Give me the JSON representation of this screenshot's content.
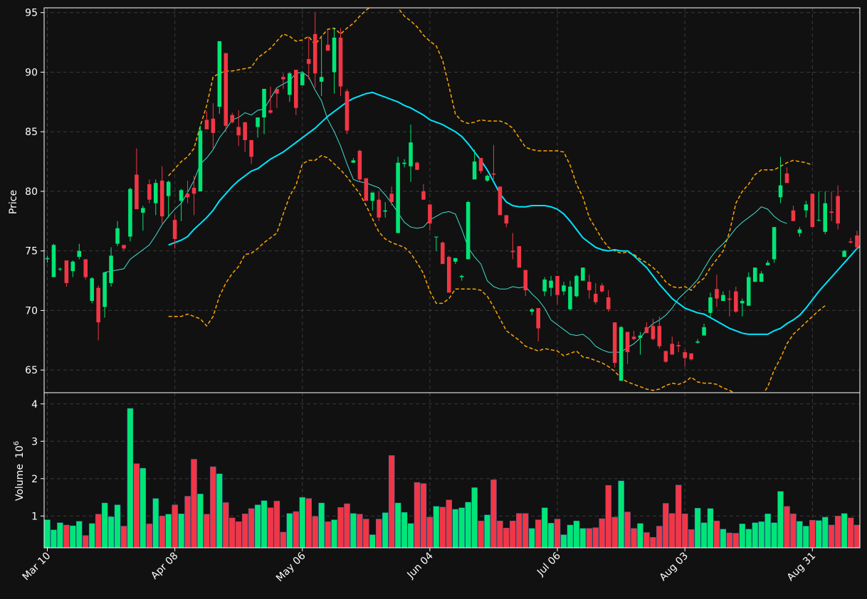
{
  "colors": {
    "background": "#111111",
    "up": "#00e676",
    "down": "#f23645",
    "ma_fast": "#40e0d0",
    "ma_slow": "#00e5ff",
    "bands": "#ffa500",
    "grid": "#3a3a3a",
    "axis": "#ffffff"
  },
  "chart_data": {
    "type": "candlestick",
    "title": "",
    "ylabel_price": "Price",
    "ylabel_volume": "Volume",
    "volume_multiplier_label": "10",
    "volume_multiplier_exp": "6",
    "price_yticks": [
      65,
      70,
      75,
      80,
      85,
      90,
      95
    ],
    "volume_yticks": [
      1,
      2,
      3,
      4
    ],
    "price_ylim": [
      63.1,
      95.4
    ],
    "volume_ylim": [
      0.15,
      4.3
    ],
    "x_ticks": [
      {
        "index": 0,
        "label": "Mar 10"
      },
      {
        "index": 20,
        "label": "Apr 08"
      },
      {
        "index": 40,
        "label": "May 06"
      },
      {
        "index": 60,
        "label": "Jun 04"
      },
      {
        "index": 80,
        "label": "Jul 06"
      },
      {
        "index": 100,
        "label": "Aug 03"
      },
      {
        "index": 120,
        "label": "Aug 31"
      }
    ],
    "grid": true,
    "candles_ohlcv": [
      [
        74.3,
        74.6,
        74.0,
        74.4,
        0.9
      ],
      [
        72.8,
        75.6,
        72.8,
        75.5,
        0.63
      ],
      [
        73.5,
        73.6,
        73.3,
        73.5,
        0.82
      ],
      [
        74.2,
        74.2,
        72.0,
        72.3,
        0.76
      ],
      [
        73.3,
        74.2,
        72.8,
        74.1,
        0.74
      ],
      [
        74.5,
        75.6,
        74.3,
        75.0,
        0.86
      ],
      [
        74.3,
        74.3,
        72.6,
        72.8,
        0.48
      ],
      [
        70.8,
        72.8,
        70.6,
        72.7,
        0.8
      ],
      [
        71.9,
        72.1,
        67.5,
        69.0,
        1.05
      ],
      [
        70.3,
        73.2,
        69.4,
        73.2,
        1.35
      ],
      [
        72.3,
        75.3,
        72.0,
        74.6,
        0.98
      ],
      [
        75.6,
        77.5,
        75.4,
        76.9,
        1.3
      ],
      [
        75.5,
        75.5,
        75.0,
        75.2,
        0.73
      ],
      [
        76.2,
        80.3,
        75.8,
        80.2,
        3.88
      ],
      [
        81.4,
        83.6,
        78.6,
        78.5,
        2.4
      ],
      [
        78.2,
        78.8,
        76.7,
        78.6,
        2.28
      ],
      [
        80.6,
        81.0,
        79.0,
        79.3,
        0.79
      ],
      [
        79.0,
        81.0,
        78.0,
        80.7,
        1.47
      ],
      [
        80.9,
        82.1,
        77.3,
        77.9,
        1.0
      ],
      [
        79.6,
        80.9,
        77.8,
        80.8,
        1.05
      ],
      [
        77.6,
        78.0,
        75.2,
        76.0,
        1.3
      ],
      [
        79.2,
        80.2,
        77.5,
        80.1,
        1.06
      ],
      [
        79.8,
        80.9,
        79.0,
        79.5,
        1.53
      ],
      [
        80.3,
        81.3,
        78.0,
        79.8,
        2.52
      ],
      [
        80.0,
        85.5,
        80.0,
        85.1,
        1.59
      ],
      [
        86.0,
        86.7,
        85.4,
        85.2,
        1.05
      ],
      [
        86.1,
        87.4,
        83.5,
        84.9,
        2.32
      ],
      [
        87.1,
        92.6,
        86.5,
        92.6,
        2.13
      ],
      [
        91.6,
        91.6,
        85.0,
        85.5,
        1.36
      ],
      [
        86.4,
        86.6,
        85.7,
        85.8,
        0.95
      ],
      [
        85.4,
        86.8,
        83.8,
        84.7,
        0.85
      ],
      [
        85.8,
        85.8,
        83.3,
        84.3,
        1.06
      ],
      [
        84.3,
        84.3,
        82.3,
        82.9,
        1.2
      ],
      [
        85.4,
        86.2,
        84.5,
        86.2,
        1.3
      ],
      [
        86.2,
        88.6,
        84.8,
        88.6,
        1.41
      ],
      [
        86.8,
        88.8,
        86.5,
        86.6,
        1.22
      ],
      [
        88.6,
        88.6,
        87.0,
        88.2,
        1.4
      ],
      [
        89.6,
        89.9,
        88.6,
        89.4,
        0.57
      ],
      [
        88.1,
        90.0,
        87.5,
        89.9,
        1.07
      ],
      [
        90.2,
        90.2,
        86.4,
        87.0,
        1.12
      ],
      [
        88.9,
        90.1,
        88.9,
        89.9,
        1.5
      ],
      [
        91.1,
        93.0,
        89.4,
        90.7,
        1.47
      ],
      [
        93.2,
        95.0,
        88.7,
        89.9,
        0.99
      ],
      [
        89.2,
        92.9,
        88.0,
        89.6,
        1.35
      ],
      [
        92.3,
        93.5,
        91.8,
        91.8,
        0.85
      ],
      [
        90.0,
        93.7,
        88.2,
        92.9,
        0.9
      ],
      [
        92.9,
        93.7,
        88.0,
        88.8,
        1.23
      ],
      [
        88.4,
        88.6,
        84.8,
        85.1,
        1.33
      ],
      [
        82.4,
        82.8,
        82.4,
        82.6,
        1.07
      ],
      [
        83.4,
        83.5,
        80.8,
        81.0,
        1.05
      ],
      [
        81.1,
        81.1,
        79.7,
        79.2,
        0.92
      ],
      [
        79.2,
        79.9,
        78.4,
        79.9,
        0.5
      ],
      [
        79.3,
        80.0,
        77.5,
        77.8,
        0.92
      ],
      [
        78.3,
        79.1,
        77.8,
        78.4,
        1.09
      ],
      [
        79.8,
        80.4,
        78.8,
        79.1,
        2.62
      ],
      [
        76.5,
        82.9,
        76.5,
        82.4,
        1.35
      ],
      [
        82.3,
        82.7,
        82.0,
        82.4,
        1.1
      ],
      [
        82.1,
        85.6,
        80.8,
        84.1,
        0.8
      ],
      [
        82.4,
        82.5,
        81.8,
        81.8,
        1.9
      ],
      [
        80.0,
        80.6,
        79.3,
        79.3,
        1.87
      ],
      [
        78.9,
        78.9,
        76.7,
        77.3,
        0.97
      ],
      [
        76.2,
        76.2,
        75.0,
        76.2,
        1.26
      ],
      [
        75.7,
        75.8,
        73.9,
        73.9,
        1.24
      ],
      [
        74.5,
        74.6,
        71.5,
        71.5,
        1.43
      ],
      [
        74.1,
        74.4,
        73.9,
        74.4,
        1.18
      ],
      [
        72.8,
        73.0,
        72.5,
        72.9,
        1.22
      ],
      [
        74.3,
        79.2,
        74.3,
        79.1,
        1.37
      ],
      [
        81.0,
        83.5,
        81.0,
        82.5,
        1.76
      ],
      [
        82.8,
        82.8,
        81.5,
        81.7,
        0.87
      ],
      [
        80.9,
        81.4,
        80.8,
        81.3,
        1.03
      ],
      [
        81.5,
        83.9,
        81.0,
        81.4,
        1.97
      ],
      [
        80.4,
        80.4,
        78.0,
        78.0,
        0.87
      ],
      [
        78.0,
        78.0,
        77.0,
        77.3,
        0.68
      ],
      [
        75.0,
        76.5,
        74.3,
        74.9,
        0.87
      ],
      [
        75.4,
        75.4,
        73.6,
        73.6,
        1.07
      ],
      [
        73.4,
        73.4,
        71.2,
        71.7,
        1.07
      ],
      [
        69.9,
        70.2,
        69.6,
        70.1,
        0.67
      ],
      [
        70.2,
        70.2,
        67.4,
        68.5,
        0.9
      ],
      [
        71.6,
        72.8,
        71.2,
        72.6,
        1.22
      ],
      [
        71.9,
        72.9,
        71.2,
        72.5,
        0.81
      ],
      [
        72.9,
        72.9,
        70.5,
        71.3,
        0.92
      ],
      [
        71.6,
        72.4,
        71.3,
        72.1,
        0.5
      ],
      [
        70.1,
        72.5,
        70.0,
        72.0,
        0.76
      ],
      [
        71.2,
        73.0,
        71.1,
        72.9,
        0.87
      ],
      [
        72.5,
        73.3,
        72.5,
        73.6,
        0.67
      ],
      [
        72.4,
        73.0,
        71.0,
        71.7,
        0.67
      ],
      [
        71.4,
        72.3,
        70.5,
        70.7,
        0.69
      ],
      [
        72.1,
        72.3,
        71.5,
        71.6,
        0.93
      ],
      [
        71.1,
        71.7,
        69.9,
        70.1,
        1.82
      ],
      [
        69.0,
        69.0,
        65.2,
        65.6,
        0.97
      ],
      [
        64.1,
        68.7,
        64.1,
        68.6,
        1.94
      ],
      [
        68.2,
        68.2,
        65.5,
        66.5,
        1.11
      ],
      [
        67.8,
        68.3,
        67.5,
        67.6,
        0.67
      ],
      [
        67.7,
        68.2,
        66.3,
        67.9,
        0.8
      ],
      [
        68.6,
        69.0,
        68.2,
        68.1,
        0.56
      ],
      [
        68.7,
        69.3,
        67.5,
        67.6,
        0.43
      ],
      [
        68.7,
        69.5,
        66.8,
        67.0,
        0.73
      ],
      [
        66.6,
        66.6,
        65.6,
        65.7,
        1.34
      ],
      [
        67.2,
        67.8,
        66.6,
        66.3,
        1.07
      ],
      [
        67.1,
        67.4,
        66.5,
        67.0,
        1.83
      ],
      [
        66.5,
        66.7,
        65.3,
        66.0,
        1.06
      ],
      [
        66.4,
        66.4,
        65.8,
        65.9,
        0.64
      ],
      [
        67.3,
        67.6,
        67.2,
        67.4,
        1.21
      ],
      [
        67.9,
        68.9,
        67.9,
        68.6,
        0.82
      ],
      [
        69.8,
        71.5,
        69.4,
        71.1,
        1.2
      ],
      [
        71.8,
        73.0,
        70.3,
        71.0,
        0.87
      ],
      [
        70.8,
        71.6,
        70.8,
        71.3,
        0.65
      ],
      [
        71.0,
        71.7,
        69.5,
        70.9,
        0.55
      ],
      [
        71.6,
        72.0,
        69.8,
        69.9,
        0.54
      ],
      [
        70.6,
        71.0,
        69.5,
        70.8,
        0.79
      ],
      [
        70.4,
        73.2,
        70.4,
        72.8,
        0.65
      ],
      [
        72.4,
        73.6,
        72.4,
        73.6,
        0.82
      ],
      [
        72.4,
        73.3,
        72.4,
        73.1,
        0.85
      ],
      [
        73.8,
        74.2,
        73.8,
        74.0,
        1.06
      ],
      [
        74.3,
        77.0,
        74.0,
        77.0,
        0.82
      ],
      [
        79.5,
        82.9,
        79.0,
        80.5,
        1.66
      ],
      [
        81.5,
        82.0,
        80.7,
        80.7,
        1.26
      ],
      [
        78.4,
        78.8,
        77.6,
        77.5,
        1.06
      ],
      [
        76.5,
        77.0,
        76.2,
        76.8,
        0.86
      ],
      [
        78.4,
        79.2,
        77.8,
        78.9,
        0.73
      ],
      [
        79.8,
        79.8,
        77.0,
        77.0,
        0.89
      ],
      [
        77.6,
        80.0,
        77.5,
        77.6,
        0.88
      ],
      [
        76.6,
        80.0,
        76.4,
        79.0,
        0.97
      ],
      [
        78.3,
        80.0,
        77.5,
        78.2,
        0.76
      ],
      [
        79.6,
        80.5,
        76.8,
        77.3,
        1.0
      ],
      [
        74.5,
        75.1,
        74.5,
        75.0,
        1.07
      ],
      [
        75.8,
        76.1,
        75.6,
        75.7,
        0.95
      ],
      [
        76.3,
        76.7,
        75.1,
        75.3,
        0.76
      ]
    ],
    "ma_fast": [
      73.2,
      73.3,
      73.4,
      73.5,
      74.3,
      74.7,
      75.1,
      75.5,
      76.3,
      77.2,
      77.9,
      78.5,
      79.0,
      79.9,
      80.9,
      82.3,
      82.8,
      83.5,
      84.5,
      85.2,
      86.0,
      86.2,
      86.6,
      86.4,
      86.8,
      86.9,
      87.8,
      88.7,
      89.0,
      89.3,
      89.9,
      90.0,
      89.6,
      88.5,
      87.6,
      86.0,
      85.0,
      83.8,
      82.3,
      81.0,
      80.8,
      80.7,
      80.5,
      80.3,
      79.7,
      79.0,
      78.2,
      77.4,
      77.0,
      76.9,
      77.0,
      77.6,
      77.9,
      78.2,
      78.3,
      78.1,
      76.8,
      75.3,
      74.5,
      73.9,
      72.5,
      72.0,
      71.8,
      71.8,
      72.0,
      71.9,
      72.0,
      71.4,
      70.9,
      70.2,
      69.2,
      68.8,
      68.4,
      68.0,
      67.9,
      68.0,
      67.6,
      67.0,
      66.7,
      66.5,
      66.5,
      66.5,
      66.9,
      67.2,
      67.7,
      68.4,
      68.9,
      69.2,
      69.6,
      70.2,
      71.0,
      71.5,
      72.0,
      72.6,
      73.5,
      74.4,
      75.1,
      75.6,
      76.2,
      76.9,
      77.4,
      77.8,
      78.2,
      78.7,
      78.5,
      77.9,
      77.5,
      77.3
    ],
    "ma_fast_start_index": 9,
    "ma_slow": [
      75.5,
      75.7,
      75.9,
      76.2,
      76.8,
      77.3,
      77.8,
      78.4,
      79.2,
      79.8,
      80.4,
      80.9,
      81.3,
      81.7,
      81.9,
      82.3,
      82.7,
      83.0,
      83.3,
      83.7,
      84.1,
      84.5,
      84.9,
      85.3,
      85.8,
      86.3,
      86.7,
      87.1,
      87.5,
      87.8,
      88.0,
      88.2,
      88.3,
      88.1,
      87.9,
      87.7,
      87.5,
      87.2,
      87.0,
      86.7,
      86.4,
      86.0,
      85.8,
      85.6,
      85.3,
      85.0,
      84.6,
      84.0,
      83.3,
      82.6,
      81.8,
      80.8,
      79.8,
      79.1,
      78.8,
      78.7,
      78.7,
      78.8,
      78.8,
      78.8,
      78.7,
      78.5,
      78.1,
      77.5,
      76.8,
      76.1,
      75.7,
      75.3,
      75.1,
      75.0,
      75.1,
      75.0,
      75.0,
      74.6,
      74.1,
      73.6,
      72.9,
      72.2,
      71.6,
      71.0,
      70.6,
      70.2,
      70.0,
      69.8,
      69.7,
      69.4,
      69.1,
      68.8,
      68.5,
      68.3,
      68.1,
      68.0,
      68.0,
      68.0,
      68.0,
      68.3,
      68.5,
      68.9,
      69.2,
      69.6,
      70.2,
      70.9,
      71.6,
      72.2,
      72.8,
      73.4,
      74.0,
      74.6,
      75.2,
      75.6,
      75.9,
      76.2
    ],
    "ma_slow_start_index": 19,
    "band_upper": [
      81.3,
      81.9,
      82.5,
      82.9,
      83.6,
      85.5,
      87.2,
      89.6,
      89.9,
      90.1,
      90.1,
      90.2,
      90.3,
      90.4,
      91.2,
      91.6,
      92.0,
      92.6,
      93.2,
      93.0,
      92.6,
      92.7,
      93.0,
      92.3,
      93.0,
      93.6,
      93.7,
      93.2,
      93.7,
      94.1,
      94.7,
      95.2,
      95.6,
      95.9,
      96.1,
      95.8,
      95.4,
      94.7,
      94.3,
      93.8,
      93.1,
      92.6,
      92.2,
      91.0,
      88.8,
      86.5,
      85.9,
      85.7,
      85.8,
      86.0,
      85.9,
      85.9,
      85.9,
      85.7,
      85.3,
      84.5,
      83.7,
      83.5,
      83.4,
      83.4,
      83.4,
      83.4,
      83.3,
      82.2,
      80.6,
      79.5,
      77.8,
      76.9,
      76.0,
      75.3,
      75.0,
      74.8,
      74.9,
      74.7,
      74.3,
      74.0,
      73.6,
      73.1,
      72.4,
      72.0,
      71.9,
      72.0,
      71.7,
      72.3,
      72.7,
      73.6,
      74.3,
      75.0,
      76.6,
      79.0,
      80.0,
      80.6,
      81.4,
      81.8,
      81.8,
      81.8,
      82.1,
      82.4,
      82.6,
      82.5,
      82.4,
      82.2
    ],
    "band_lower": [
      69.5,
      69.5,
      69.5,
      69.7,
      69.5,
      69.3,
      68.7,
      69.5,
      71.2,
      72.3,
      73.1,
      73.7,
      74.7,
      74.8,
      75.2,
      75.7,
      76.1,
      76.5,
      78.1,
      79.6,
      80.5,
      82.3,
      82.6,
      82.6,
      83.0,
      82.8,
      82.3,
      81.8,
      81.2,
      80.5,
      79.8,
      78.8,
      77.7,
      76.6,
      76.0,
      75.7,
      75.5,
      75.3,
      74.8,
      74.0,
      73.1,
      71.6,
      70.6,
      70.6,
      71.0,
      71.8,
      71.8,
      71.8,
      71.8,
      71.7,
      71.2,
      70.3,
      69.3,
      68.3,
      67.9,
      67.5,
      67.0,
      66.8,
      66.6,
      66.8,
      66.7,
      66.6,
      66.2,
      66.4,
      66.6,
      66.1,
      66.0,
      65.8,
      65.6,
      65.3,
      64.9,
      64.3,
      64.0,
      63.8,
      63.6,
      63.4,
      63.3,
      63.4,
      63.7,
      63.9,
      63.8,
      64.0,
      64.4,
      64.0,
      63.9,
      63.9,
      63.8,
      63.5,
      63.3,
      63.0,
      63.0,
      62.9,
      62.3,
      62.8,
      63.6,
      65.0,
      66.0,
      67.2,
      68.0,
      68.5,
      69.0,
      69.5,
      70.0,
      70.4
    ],
    "bands_start_index": 19
  }
}
